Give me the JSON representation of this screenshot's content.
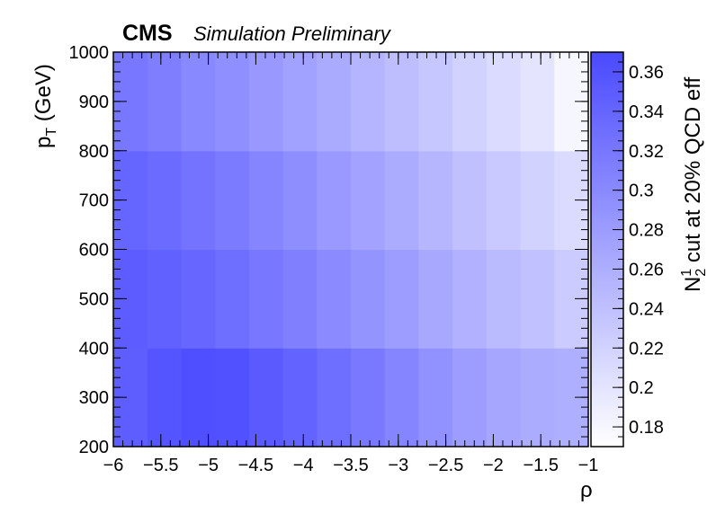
{
  "header": {
    "experiment": "CMS",
    "subtitle": "Simulation Preliminary"
  },
  "chart_data": {
    "type": "heatmap",
    "xlabel": "ρ",
    "ylabel": "p",
    "ylabel_sub": "T",
    "ylabel_unit": " (GeV)",
    "zlabel_prefix": "N",
    "zlabel_sup": "1",
    "zlabel_sub": "2",
    "zlabel_suffix": " cut at 20% QCD eff",
    "xlim": [
      -6,
      -1
    ],
    "ylim": [
      200,
      1000
    ],
    "zlim": [
      0.17,
      0.37
    ],
    "x_ticks": [
      "−6",
      "−5.5",
      "−5",
      "−4.5",
      "−4",
      "−3.5",
      "−3",
      "−2.5",
      "−2",
      "−1.5",
      "−1"
    ],
    "y_ticks": [
      "200",
      "300",
      "400",
      "500",
      "600",
      "700",
      "800",
      "900",
      "1000"
    ],
    "z_ticks": [
      "0.18",
      "0.2",
      "0.22",
      "0.24",
      "0.26",
      "0.28",
      "0.3",
      "0.32",
      "0.34",
      "0.36"
    ],
    "z_tick_values": [
      0.18,
      0.2,
      0.22,
      0.24,
      0.26,
      0.28,
      0.3,
      0.32,
      0.34,
      0.36
    ],
    "x_bins": 14,
    "y_bin_edges": [
      200,
      400,
      600,
      800,
      1000
    ],
    "values": [
      [
        0.348,
        0.358,
        0.365,
        0.362,
        0.352,
        0.342,
        0.33,
        0.318,
        0.305,
        0.292,
        0.278,
        0.268,
        0.262,
        0.258
      ],
      [
        0.35,
        0.345,
        0.338,
        0.33,
        0.32,
        0.31,
        0.298,
        0.288,
        0.278,
        0.266,
        0.256,
        0.246,
        0.238,
        0.228
      ],
      [
        0.34,
        0.334,
        0.325,
        0.316,
        0.305,
        0.295,
        0.283,
        0.272,
        0.262,
        0.251,
        0.24,
        0.23,
        0.22,
        0.21
      ],
      [
        0.32,
        0.312,
        0.302,
        0.294,
        0.284,
        0.274,
        0.264,
        0.252,
        0.242,
        0.232,
        0.22,
        0.21,
        0.2,
        0.18
      ]
    ],
    "colors": {
      "high": "#4a4aff",
      "low": "#ffffff",
      "frame": "#000000"
    }
  }
}
